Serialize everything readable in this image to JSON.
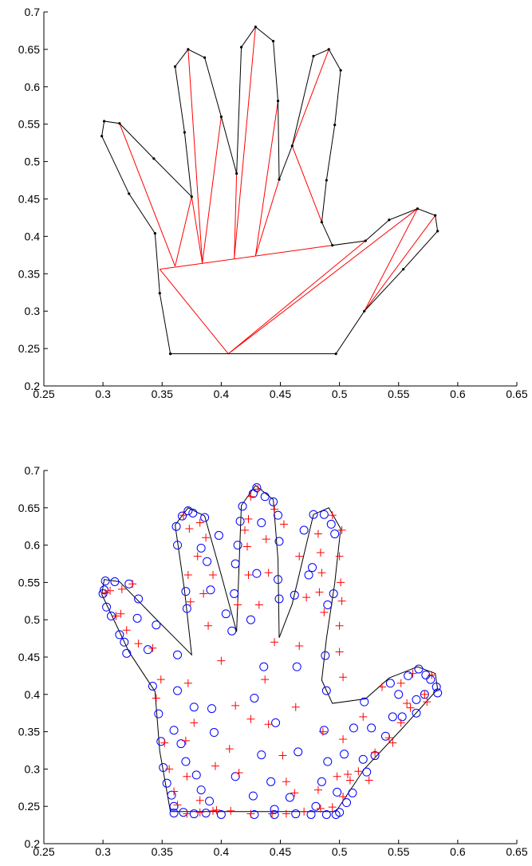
{
  "chart_data": [
    {
      "type": "line",
      "xlim": [
        0.25,
        0.65
      ],
      "xticks": [
        0.25,
        0.3,
        0.35,
        0.4,
        0.45,
        0.5,
        0.55,
        0.6,
        0.65
      ],
      "ylim": [
        0.2,
        0.7
      ],
      "yticks": [
        0.2,
        0.25,
        0.3,
        0.35,
        0.4,
        0.45,
        0.5,
        0.55,
        0.6,
        0.65,
        0.7
      ],
      "series": [
        {
          "color": "#ff0000",
          "style": "line",
          "x": [
            0.361,
            0.314,
            null,
            0.361,
            0.375,
            null,
            0.384,
            0.375,
            null,
            0.384,
            0.372,
            null,
            0.384,
            0.4,
            null,
            0.411,
            0.413,
            null,
            0.411,
            0.429,
            null,
            0.429,
            0.448,
            null,
            0.429,
            0.449,
            null,
            0.46,
            0.491,
            null,
            0.46,
            0.485,
            null,
            0.348,
            0.494,
            null,
            0.348,
            0.406,
            null,
            0.406,
            0.522,
            null,
            0.406,
            0.566,
            null,
            0.521,
            0.566,
            null,
            0.521,
            0.581
          ],
          "values": [
            0.36,
            0.551,
            null,
            0.36,
            0.453,
            null,
            0.364,
            0.453,
            null,
            0.364,
            0.65,
            null,
            0.364,
            0.56,
            null,
            0.37,
            0.484,
            null,
            0.37,
            0.68,
            null,
            0.374,
            0.581,
            null,
            0.374,
            0.476,
            null,
            0.521,
            0.65,
            null,
            0.521,
            0.419,
            null,
            0.356,
            0.388,
            null,
            0.356,
            0.243,
            null,
            0.243,
            0.394,
            null,
            0.243,
            0.437,
            null,
            0.3,
            0.437,
            null,
            0.3,
            0.428
          ]
        },
        {
          "color": "#000000",
          "style": "line",
          "marker": "dot",
          "x": [
            0.357,
            0.497,
            0.521,
            0.554,
            0.583,
            0.581,
            0.566,
            0.542,
            0.522,
            0.494,
            0.485,
            0.489,
            0.496,
            0.501,
            0.491,
            0.478,
            0.46,
            0.449,
            0.448,
            0.444,
            0.429,
            0.417,
            0.413,
            0.4,
            0.386,
            0.372,
            0.361,
            0.369,
            0.375,
            0.343,
            0.314,
            0.301,
            0.299,
            0.322,
            0.344,
            0.348,
            0.357
          ],
          "values": [
            0.243,
            0.243,
            0.3,
            0.356,
            0.407,
            0.428,
            0.437,
            0.422,
            0.394,
            0.388,
            0.419,
            0.475,
            0.549,
            0.622,
            0.65,
            0.641,
            0.521,
            0.476,
            0.581,
            0.661,
            0.68,
            0.653,
            0.484,
            0.56,
            0.639,
            0.65,
            0.627,
            0.539,
            0.453,
            0.504,
            0.551,
            0.554,
            0.534,
            0.457,
            0.404,
            0.324,
            0.243
          ]
        }
      ]
    },
    {
      "type": "scatter",
      "xlim": [
        0.25,
        0.65
      ],
      "xticks": [
        0.25,
        0.3,
        0.35,
        0.4,
        0.45,
        0.5,
        0.55,
        0.6,
        0.65
      ],
      "ylim": [
        0.2,
        0.7
      ],
      "yticks": [
        0.2,
        0.25,
        0.3,
        0.35,
        0.4,
        0.45,
        0.5,
        0.55,
        0.6,
        0.65,
        0.7
      ],
      "series": [
        {
          "color": "#000000",
          "style": "line",
          "x": [
            0.357,
            0.497,
            0.521,
            0.554,
            0.583,
            0.581,
            0.566,
            0.542,
            0.522,
            0.494,
            0.485,
            0.489,
            0.496,
            0.501,
            0.491,
            0.478,
            0.46,
            0.449,
            0.448,
            0.444,
            0.429,
            0.417,
            0.413,
            0.4,
            0.386,
            0.372,
            0.361,
            0.369,
            0.375,
            0.343,
            0.314,
            0.301,
            0.299,
            0.322,
            0.344,
            0.348,
            0.357
          ],
          "values": [
            0.243,
            0.243,
            0.3,
            0.356,
            0.407,
            0.428,
            0.437,
            0.422,
            0.394,
            0.388,
            0.419,
            0.475,
            0.549,
            0.622,
            0.65,
            0.641,
            0.521,
            0.476,
            0.581,
            0.661,
            0.68,
            0.653,
            0.484,
            0.56,
            0.639,
            0.65,
            0.627,
            0.539,
            0.453,
            0.504,
            0.551,
            0.554,
            0.534,
            0.457,
            0.404,
            0.324,
            0.243
          ]
        },
        {
          "color": "#0000ff",
          "style": "circle",
          "x": [
            0.3,
            0.301,
            0.302,
            0.31,
            0.322,
            0.33,
            0.303,
            0.307,
            0.314,
            0.318,
            0.329,
            0.345,
            0.32,
            0.338,
            0.342,
            0.347,
            0.349,
            0.351,
            0.354,
            0.358,
            0.36,
            0.36,
            0.368,
            0.377,
            0.387,
            0.4,
            0.428,
            0.445,
            0.463,
            0.476,
            0.489,
            0.497,
            0.5,
            0.506,
            0.511,
            0.523,
            0.53,
            0.539,
            0.553,
            0.565,
            0.572,
            0.582,
            0.583,
            0.577,
            0.573,
            0.567,
            0.558,
            0.543,
            0.521,
            0.489,
            0.488,
            0.49,
            0.495,
            0.496,
            0.493,
            0.487,
            0.478,
            0.47,
            0.477,
            0.474,
            0.462,
            0.444,
            0.437,
            0.43,
            0.427,
            0.418,
            0.416,
            0.414,
            0.412,
            0.411,
            0.409,
            0.43,
            0.434,
            0.448,
            0.449,
            0.448,
            0.449,
            0.425,
            0.386,
            0.376,
            0.372,
            0.367,
            0.362,
            0.363,
            0.37,
            0.371,
            0.383,
            0.388,
            0.391,
            0.398,
            0.404,
            0.363,
            0.363,
            0.377,
            0.392,
            0.394,
            0.36,
            0.366,
            0.37,
            0.379,
            0.383,
            0.39,
            0.412,
            0.427,
            0.434,
            0.428,
            0.436,
            0.442,
            0.445,
            0.446,
            0.464,
            0.465,
            0.48,
            0.485,
            0.487,
            0.498,
            0.504,
            0.512,
            0.52,
            0.527,
            0.545,
            0.55,
            0.565,
            0.49,
            0.458
          ],
          "values": [
            0.535,
            0.54,
            0.552,
            0.551,
            0.548,
            0.528,
            0.517,
            0.505,
            0.48,
            0.47,
            0.502,
            0.493,
            0.455,
            0.46,
            0.411,
            0.374,
            0.337,
            0.302,
            0.281,
            0.265,
            0.25,
            0.241,
            0.242,
            0.24,
            0.241,
            0.239,
            0.239,
            0.239,
            0.24,
            0.239,
            0.239,
            0.239,
            0.242,
            0.255,
            0.268,
            0.296,
            0.318,
            0.344,
            0.37,
            0.393,
            0.4,
            0.41,
            0.402,
            0.42,
            0.426,
            0.434,
            0.425,
            0.415,
            0.39,
            0.405,
            0.452,
            0.52,
            0.535,
            0.615,
            0.628,
            0.641,
            0.641,
            0.62,
            0.57,
            0.56,
            0.533,
            0.658,
            0.665,
            0.677,
            0.669,
            0.652,
            0.632,
            0.6,
            0.575,
            0.535,
            0.485,
            0.562,
            0.63,
            0.64,
            0.605,
            0.554,
            0.528,
            0.5,
            0.637,
            0.643,
            0.646,
            0.639,
            0.625,
            0.6,
            0.538,
            0.515,
            0.596,
            0.578,
            0.54,
            0.613,
            0.508,
            0.453,
            0.405,
            0.383,
            0.381,
            0.349,
            0.352,
            0.334,
            0.31,
            0.292,
            0.272,
            0.257,
            0.29,
            0.264,
            0.319,
            0.395,
            0.437,
            0.283,
            0.246,
            0.362,
            0.437,
            0.323,
            0.25,
            0.283,
            0.352,
            0.269,
            0.32,
            0.355,
            0.313,
            0.355,
            0.37,
            0.4,
            0.375,
            0.31,
            0.262
          ]
        },
        {
          "color": "#ff0000",
          "style": "plus",
          "x": [
            0.302,
            0.306,
            0.316,
            0.325,
            0.311,
            0.315,
            0.32,
            0.33,
            0.342,
            0.349,
            0.345,
            0.352,
            0.356,
            0.36,
            0.363,
            0.371,
            0.382,
            0.393,
            0.408,
            0.425,
            0.443,
            0.455,
            0.47,
            0.484,
            0.494,
            0.503,
            0.509,
            0.516,
            0.53,
            0.542,
            0.552,
            0.56,
            0.572,
            0.578,
            0.562,
            0.552,
            0.536,
            0.503,
            0.5,
            0.5,
            0.502,
            0.501,
            0.5,
            0.502,
            0.494,
            0.482,
            0.484,
            0.485,
            0.483,
            0.487,
            0.472,
            0.466,
            0.453,
            0.445,
            0.431,
            0.425,
            0.423,
            0.42,
            0.422,
            0.423,
            0.414,
            0.432,
            0.44,
            0.438,
            0.445,
            0.387,
            0.382,
            0.368,
            0.373,
            0.372,
            0.374,
            0.38,
            0.393,
            0.385,
            0.389,
            0.4,
            0.372,
            0.377,
            0.37,
            0.371,
            0.382,
            0.396,
            0.395,
            0.407,
            0.412,
            0.415,
            0.425,
            0.44,
            0.437,
            0.463,
            0.466,
            0.452,
            0.455,
            0.462,
            0.482,
            0.486,
            0.498,
            0.507,
            0.525,
            0.545,
            0.557,
            0.574,
            0.52,
            0.503
          ],
          "values": [
            0.536,
            0.539,
            0.541,
            0.548,
            0.505,
            0.508,
            0.486,
            0.468,
            0.462,
            0.42,
            0.395,
            0.335,
            0.3,
            0.27,
            0.252,
            0.24,
            0.242,
            0.244,
            0.244,
            0.24,
            0.24,
            0.24,
            0.243,
            0.247,
            0.249,
            0.263,
            0.285,
            0.297,
            0.322,
            0.342,
            0.362,
            0.382,
            0.4,
            0.426,
            0.428,
            0.415,
            0.41,
            0.423,
            0.457,
            0.492,
            0.525,
            0.55,
            0.585,
            0.62,
            0.64,
            0.615,
            0.59,
            0.563,
            0.537,
            0.51,
            0.53,
            0.585,
            0.628,
            0.648,
            0.675,
            0.665,
            0.635,
            0.62,
            0.598,
            0.56,
            0.52,
            0.52,
            0.563,
            0.608,
            0.47,
            0.61,
            0.63,
            0.64,
            0.622,
            0.56,
            0.524,
            0.585,
            0.56,
            0.535,
            0.492,
            0.445,
            0.415,
            0.362,
            0.338,
            0.29,
            0.258,
            0.245,
            0.304,
            0.327,
            0.385,
            0.295,
            0.367,
            0.36,
            0.42,
            0.383,
            0.465,
            0.318,
            0.283,
            0.268,
            0.272,
            0.35,
            0.29,
            0.293,
            0.285,
            0.335,
            0.388,
            0.39,
            0.37,
            0.34
          ]
        }
      ]
    }
  ]
}
